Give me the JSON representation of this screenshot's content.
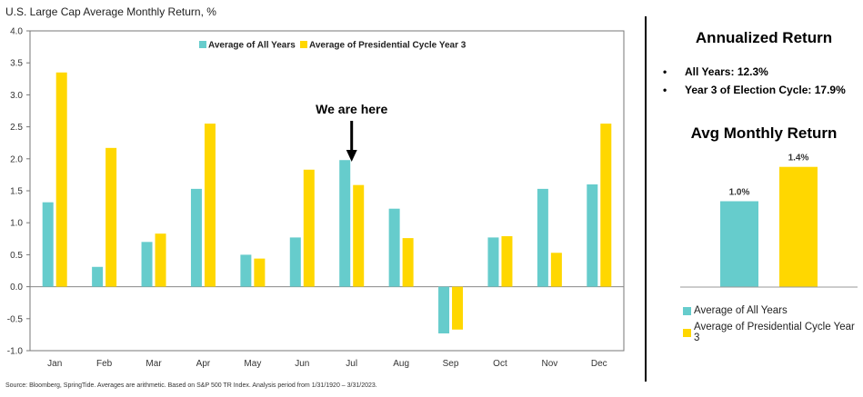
{
  "chart_title": "U.S. Large Cap Average Monthly Return, %",
  "colors": {
    "all_years": "#66CCCC",
    "cycle_year3": "#FFD700"
  },
  "legend": {
    "all_years": "Average of All Years",
    "cycle_year3": "Average of Presidential Cycle Year 3"
  },
  "annotation": "We are here",
  "source": "Source: Bloomberg, SpringTide. Averages are arithmetic. Based on S&P 500 TR Index. Analysis period from 1/31/1920 – 3/31/2023.",
  "chart_data": [
    {
      "type": "bar",
      "title": "U.S. Large Cap Average Monthly Return, %",
      "categories": [
        "Jan",
        "Feb",
        "Mar",
        "Apr",
        "May",
        "Jun",
        "Jul",
        "Aug",
        "Sep",
        "Oct",
        "Nov",
        "Dec"
      ],
      "series": [
        {
          "name": "Average of All Years",
          "values": [
            1.32,
            0.31,
            0.7,
            1.53,
            0.5,
            0.77,
            1.98,
            1.22,
            -0.73,
            0.77,
            1.53,
            1.6
          ]
        },
        {
          "name": "Average of Presidential Cycle Year 3",
          "values": [
            3.35,
            2.17,
            0.83,
            2.55,
            0.44,
            1.83,
            1.59,
            0.76,
            -0.67,
            0.79,
            0.53,
            2.55
          ]
        }
      ],
      "yticks": [
        "4.0",
        "3.5",
        "3.0",
        "2.5",
        "2.0",
        "1.5",
        "1.0",
        "0.5",
        "0.0",
        "-0.5",
        "-1.0"
      ],
      "ylim": [
        -1.0,
        4.0
      ],
      "grid": false,
      "legend_position": "top",
      "annotation": {
        "text": "We are here",
        "category": "Jul"
      }
    },
    {
      "type": "bar",
      "title": "Avg Monthly Return",
      "categories": [
        "Average of All Years",
        "Average of Presidential Cycle Year 3"
      ],
      "values": [
        1.0,
        1.4
      ],
      "data_labels": [
        "1.0%",
        "1.4%"
      ],
      "legend_position": "bottom"
    }
  ],
  "right_panel": {
    "annualized_title": "Annualized Return",
    "stats": [
      "All Years: 12.3%",
      "Year 3 of Election Cycle: 17.9%"
    ],
    "avg_monthly_title": "Avg Monthly Return",
    "legend": [
      "Average of All Years",
      "Average of Presidential Cycle Year 3"
    ]
  }
}
